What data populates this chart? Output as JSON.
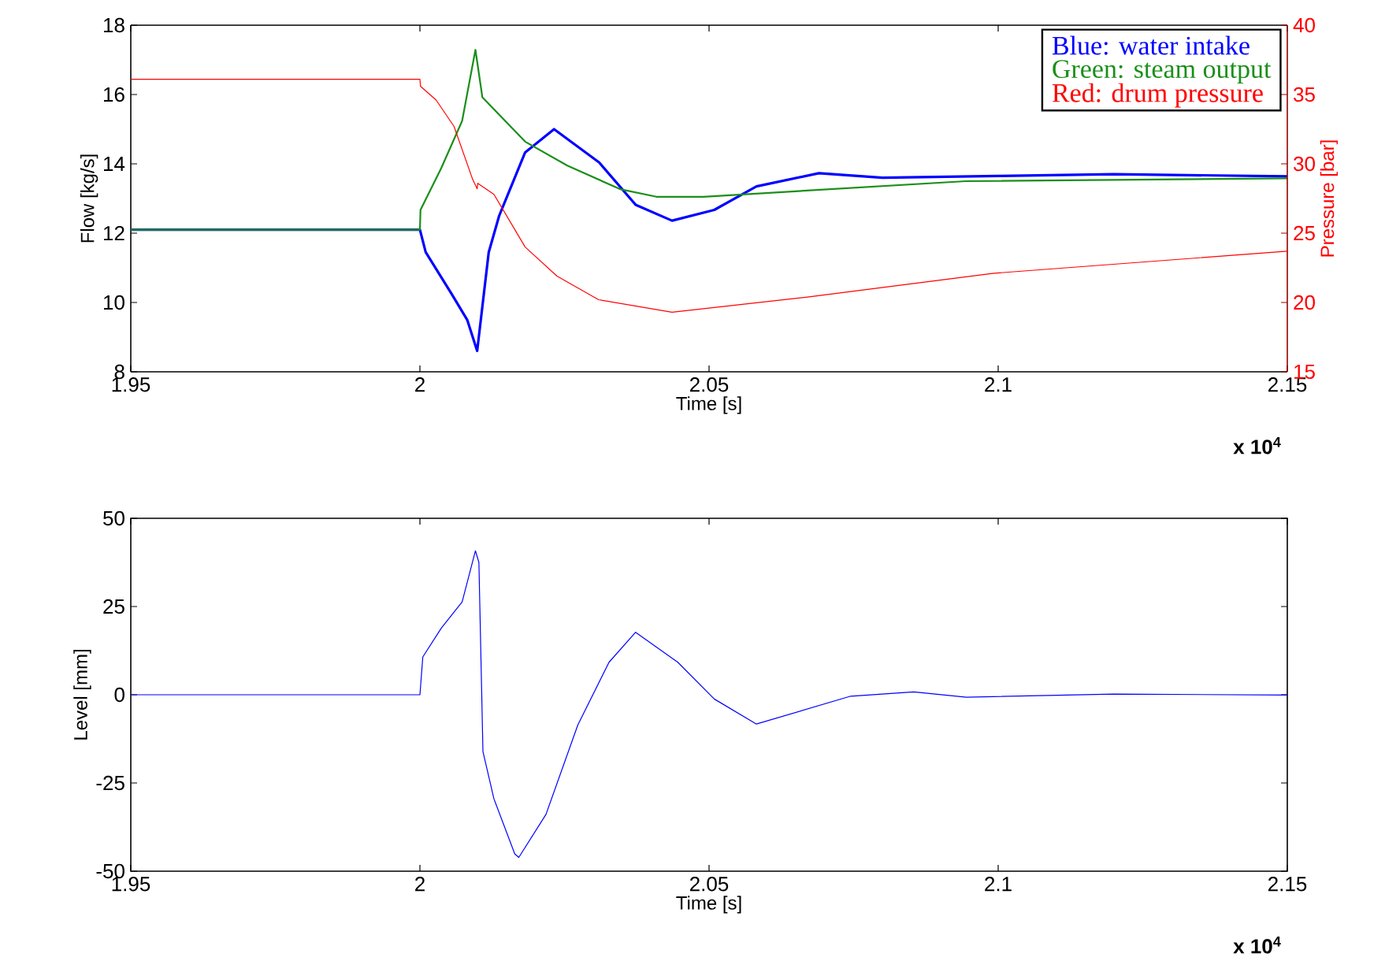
{
  "chart_data": [
    {
      "type": "line",
      "xlabel": "Time [s]",
      "ylabel": "Flow [kg/s]",
      "y2label": "Pressure [bar]",
      "xlim": [
        1.95,
        2.15
      ],
      "xticks": [
        1.95,
        2,
        2.05,
        2.1,
        2.15
      ],
      "ylim": [
        8,
        18
      ],
      "yticks": [
        8,
        10,
        12,
        14,
        16,
        18
      ],
      "y2lim": [
        15,
        40
      ],
      "y2ticks": [
        15,
        20,
        25,
        30,
        35,
        40
      ],
      "legend": "top right",
      "annotations": [
        "x 10$^{4}$"
      ],
      "series": [
        {
          "name": "Blue: water intake",
          "color": "#0000ff",
          "x": [
            1.95,
            2.0,
            2.001,
            2.0055,
            2.0082,
            2.0099,
            2.0119,
            2.0137,
            2.0182,
            2.0232,
            2.031,
            2.0373,
            2.0436,
            2.0509,
            2.0582,
            2.069,
            2.08,
            2.1,
            2.12,
            2.15
          ],
          "values": [
            12.1,
            12.1,
            11.45,
            10.24,
            9.49,
            8.6,
            11.45,
            12.5,
            14.33,
            15.0,
            14.04,
            12.82,
            12.36,
            12.67,
            13.35,
            13.73,
            13.6,
            13.65,
            13.7,
            13.64
          ]
        },
        {
          "name": "Green: steam output",
          "color": "#1a8f1a",
          "x": [
            1.95,
            2.0,
            2.0001,
            2.0037,
            2.0073,
            2.0096,
            2.0108,
            2.0182,
            2.0255,
            2.0346,
            2.0409,
            2.049,
            2.0944,
            2.15
          ],
          "values": [
            12.1,
            12.1,
            12.67,
            13.88,
            15.24,
            17.29,
            15.92,
            14.64,
            13.95,
            13.27,
            13.05,
            13.05,
            13.5,
            13.58
          ]
        },
        {
          "name": "Red: drum pressure",
          "color": "#ff0000",
          "axis": "y2",
          "x": [
            1.95,
            2.0,
            2.0001,
            2.0028,
            2.0059,
            2.0091,
            2.0099,
            2.01,
            2.0128,
            2.0182,
            2.0237,
            2.0309,
            2.0436,
            2.0673,
            2.099,
            2.15
          ],
          "values": [
            36.1,
            36.1,
            35.6,
            34.6,
            32.7,
            28.9,
            28.2,
            28.6,
            27.8,
            24.0,
            21.9,
            20.2,
            19.3,
            20.4,
            22.1,
            23.7
          ]
        }
      ]
    },
    {
      "type": "line",
      "xlabel": "Time [s]",
      "ylabel": "Level [mm]",
      "xlim": [
        1.95,
        2.15
      ],
      "xticks": [
        1.95,
        2,
        2.05,
        2.1,
        2.15
      ],
      "ylim": [
        -50,
        50
      ],
      "yticks": [
        -50,
        -25,
        0,
        25,
        50
      ],
      "annotations": [
        "x 10$^{4}$"
      ],
      "series": [
        {
          "color": "#0000ff",
          "x": [
            1.95,
            2.0,
            2.0005,
            2.0037,
            2.0073,
            2.0096,
            2.0102,
            2.0109,
            2.0128,
            2.0164,
            2.0171,
            2.0218,
            2.0273,
            2.0327,
            2.0373,
            2.0446,
            2.0509,
            2.0582,
            2.0745,
            2.0854,
            2.0945,
            2.12,
            2.15
          ],
          "values": [
            0,
            0,
            10.7,
            18.9,
            26.3,
            40.8,
            37.5,
            -16.1,
            -29.5,
            -45.1,
            -46.1,
            -33.9,
            -8.6,
            9.2,
            17.7,
            9.2,
            -1.2,
            -8.3,
            -0.4,
            0.8,
            -0.7,
            0.2,
            -0.1
          ]
        }
      ]
    }
  ]
}
